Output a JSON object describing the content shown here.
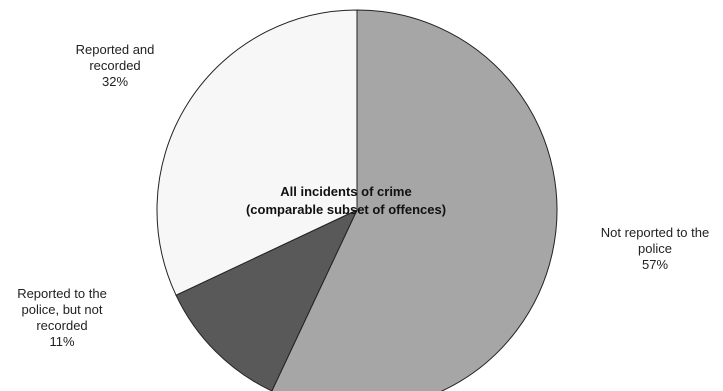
{
  "chart_data": {
    "type": "pie",
    "center_label": [
      "All incidents of crime",
      "(comparable subset of offences)"
    ],
    "start_angle_deg": 0,
    "direction": "clockwise",
    "slices": [
      {
        "name": "Not reported to the police",
        "label_lines": [
          "Not reported to the",
          "police"
        ],
        "value": 57,
        "value_label": "57%",
        "color": "#a6a6a6"
      },
      {
        "name": "Reported to the police, but not recorded",
        "label_lines": [
          "Reported to the",
          "police, but not",
          "recorded"
        ],
        "value": 11,
        "value_label": "11%",
        "color": "#595959"
      },
      {
        "name": "Reported and recorded",
        "label_lines": [
          "Reported and",
          "recorded"
        ],
        "value": 32,
        "value_label": "32%",
        "color": "#f7f7f7"
      }
    ],
    "legend": "none"
  }
}
